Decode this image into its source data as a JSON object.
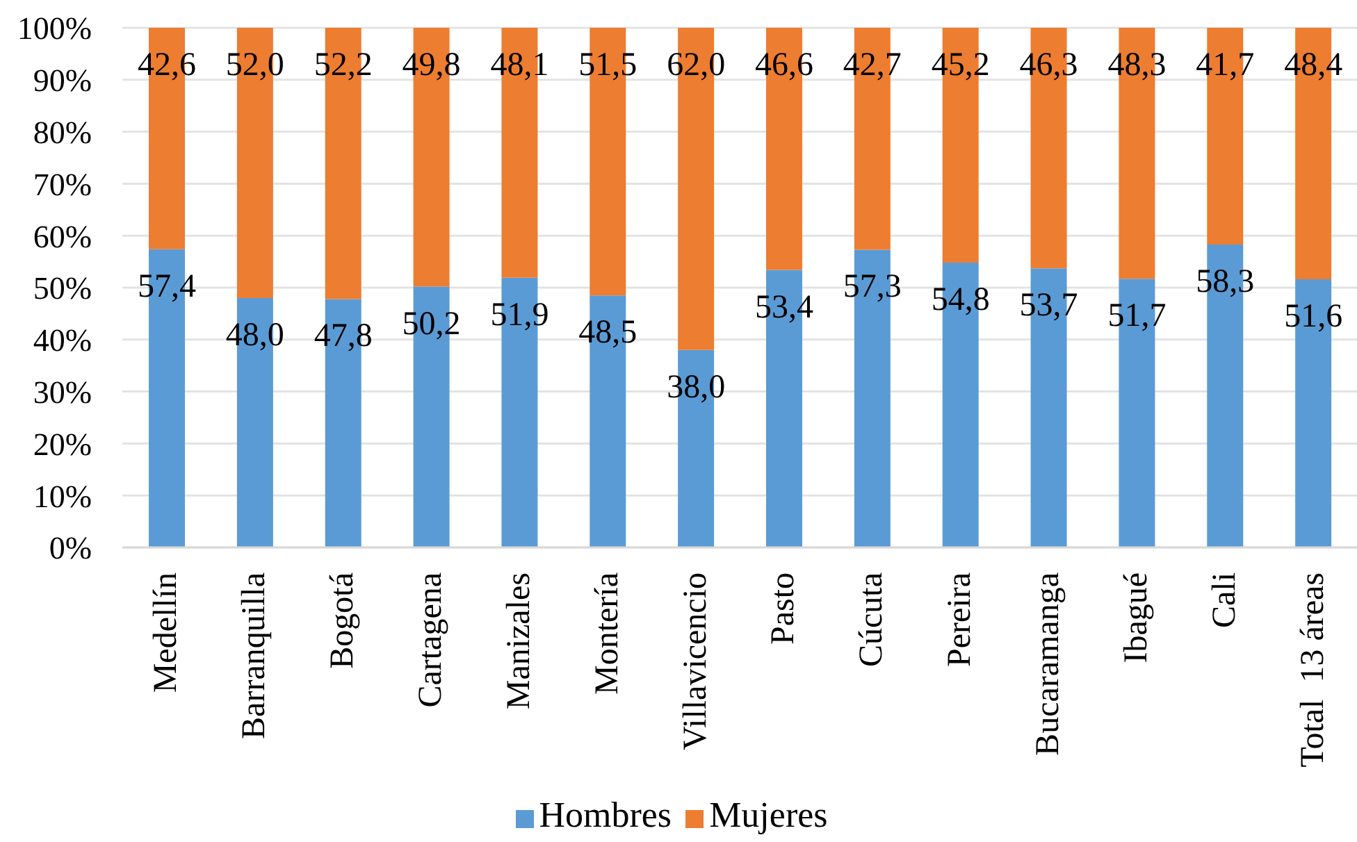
{
  "chart_data": {
    "type": "bar",
    "stacked": true,
    "categories": [
      "Medellín",
      "Barranquilla",
      "Bogotá",
      "Cartagena",
      "Manizales",
      "Montería",
      "Villavicencio",
      "Pasto",
      "Cúcuta",
      "Pereira",
      "Bucaramanga",
      "Ibagué",
      "Cali",
      "Total  13 áreas"
    ],
    "series": [
      {
        "name": "Hombres",
        "color": "#5b9bd5",
        "values": [
          57.4,
          48.0,
          47.8,
          50.2,
          51.9,
          48.5,
          38.0,
          53.4,
          57.3,
          54.8,
          53.7,
          51.7,
          58.3,
          51.6
        ],
        "value_labels": [
          "57,4",
          "48,0",
          "47,8",
          "50,2",
          "51,9",
          "48,5",
          "38,0",
          "53,4",
          "57,3",
          "54,8",
          "53,7",
          "51,7",
          "58,3",
          "51,6"
        ]
      },
      {
        "name": "Mujeres",
        "color": "#ed7d31",
        "values": [
          42.6,
          52.0,
          52.2,
          49.8,
          48.1,
          51.5,
          62.0,
          46.6,
          42.7,
          45.2,
          46.3,
          48.3,
          41.7,
          48.4
        ],
        "value_labels": [
          "42,6",
          "52,0",
          "52,2",
          "49,8",
          "48,1",
          "51,5",
          "62,0",
          "46,6",
          "42,7",
          "45,2",
          "46,3",
          "48,3",
          "41,7",
          "48,4"
        ]
      }
    ],
    "ylim": [
      0,
      100
    ],
    "yticks": [
      {
        "value": 0,
        "label": "0%"
      },
      {
        "value": 10,
        "label": "10%"
      },
      {
        "value": 20,
        "label": "20%"
      },
      {
        "value": 30,
        "label": "30%"
      },
      {
        "value": 40,
        "label": "40%"
      },
      {
        "value": 50,
        "label": "50%"
      },
      {
        "value": 60,
        "label": "60%"
      },
      {
        "value": 70,
        "label": "70%"
      },
      {
        "value": 80,
        "label": "80%"
      },
      {
        "value": 90,
        "label": "90%"
      },
      {
        "value": 100,
        "label": "100%"
      }
    ],
    "grid": "y",
    "legend": "bottom"
  }
}
